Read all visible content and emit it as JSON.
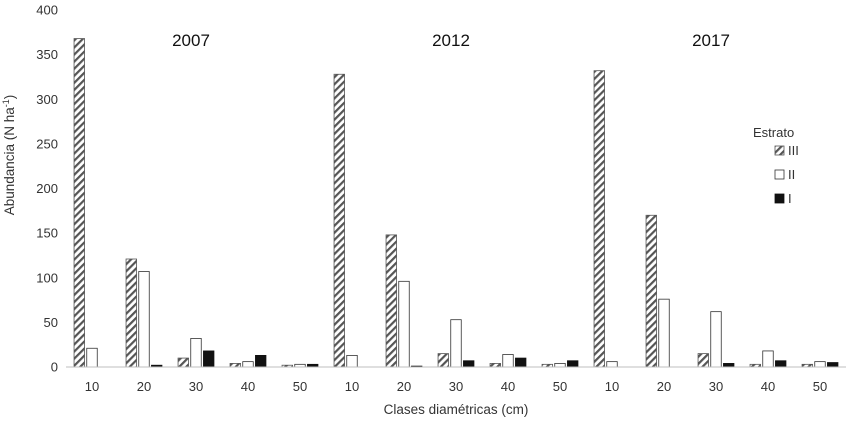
{
  "chart_data": {
    "type": "bar",
    "title": "",
    "xlabel": "Clases diamétricas (cm)",
    "ylabel": "Abundancia (N ha",
    "ylabel_sup": "-1",
    "ylabel_end": ")",
    "ylim": [
      0,
      400
    ],
    "yticks": [
      "0",
      "50",
      "100",
      "150",
      "200",
      "250",
      "300",
      "350",
      "400"
    ],
    "grid": false,
    "legend_position": "right",
    "legend_title": "Estrato",
    "groups": [
      {
        "label": "2007",
        "categories": [
          "10",
          "20",
          "30",
          "40",
          "50"
        ],
        "series": [
          {
            "name": "III",
            "values": [
              368,
              121,
              10,
              4,
              2
            ]
          },
          {
            "name": "II",
            "values": [
              21,
              107,
              32,
              6,
              3
            ]
          },
          {
            "name": "I",
            "values": [
              0,
              2,
              18,
              13,
              3
            ]
          }
        ]
      },
      {
        "label": "2012",
        "categories": [
          "10",
          "20",
          "30",
          "40",
          "50"
        ],
        "series": [
          {
            "name": "III",
            "values": [
              328,
              148,
              15,
              4,
              3
            ]
          },
          {
            "name": "II",
            "values": [
              13,
              96,
              53,
              14,
              4
            ]
          },
          {
            "name": "I",
            "values": [
              0,
              1,
              7,
              10,
              7
            ]
          }
        ]
      },
      {
        "label": "2017",
        "categories": [
          "10",
          "20",
          "30",
          "40",
          "50"
        ],
        "series": [
          {
            "name": "III",
            "values": [
              332,
              170,
              15,
              3,
              3
            ]
          },
          {
            "name": "II",
            "values": [
              6,
              76,
              62,
              18,
              6
            ]
          },
          {
            "name": "I",
            "values": [
              0,
              0,
              4,
              7,
              5
            ]
          }
        ]
      }
    ]
  },
  "colors": {
    "III_stroke": "#555555",
    "III_fill": "#ffffff",
    "II_fill": "#ffffff",
    "II_stroke": "#333333",
    "I_fill": "#111111",
    "axis": "#333333"
  }
}
